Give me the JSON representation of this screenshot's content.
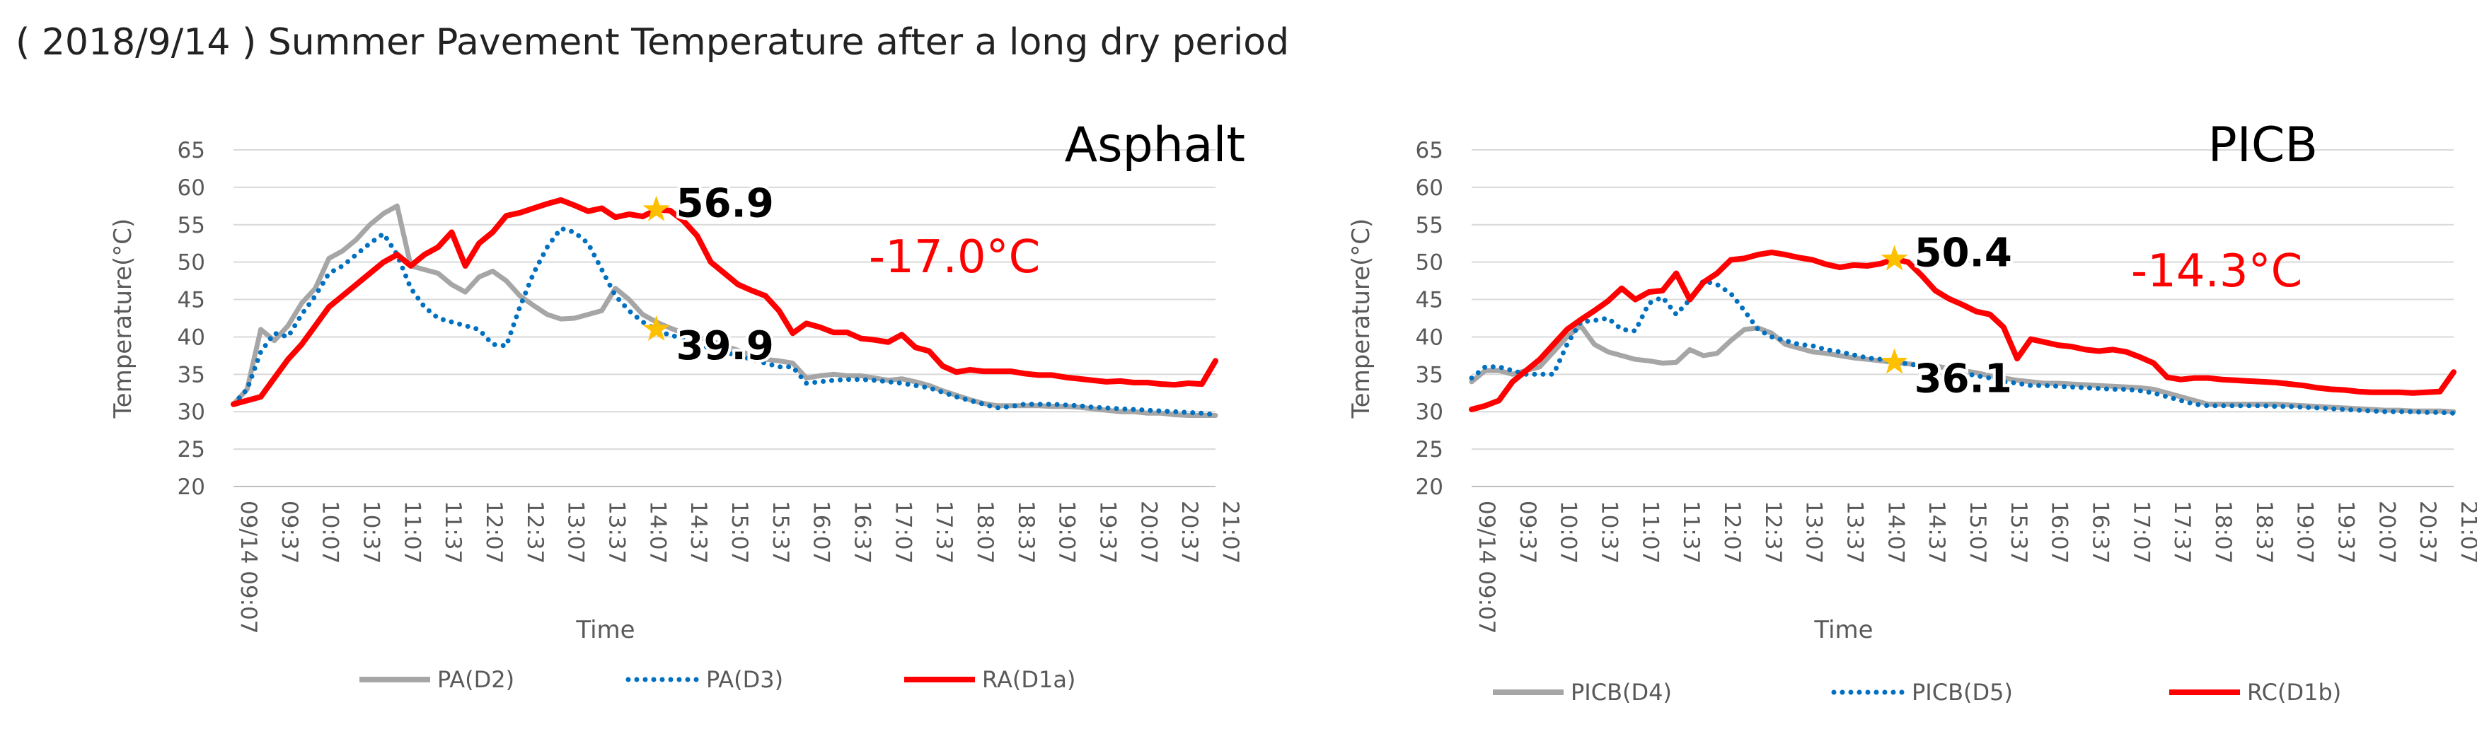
{
  "page_title": "( 2018/9/14 ) Summer Pavement Temperature after a long dry period",
  "chart_data": [
    {
      "type": "line",
      "title": "Asphalt",
      "xlabel": "Time",
      "ylabel": "Temperature(°C)",
      "ylim": [
        20,
        65
      ],
      "yticks": [
        "65",
        "60",
        "55",
        "50",
        "45",
        "40",
        "35",
        "30",
        "25",
        "20"
      ],
      "x_tick_labels": [
        "09/14 09:07",
        "09:37",
        "10:07",
        "10:37",
        "11:07",
        "11:37",
        "12:07",
        "12:37",
        "13:07",
        "13:37",
        "14:07",
        "14:37",
        "15:07",
        "15:37",
        "16:07",
        "16:37",
        "17:07",
        "17:37",
        "18:07",
        "18:37",
        "19:07",
        "19:37",
        "20:07",
        "20:37",
        "21:07"
      ],
      "x_points_per_tick": 3,
      "grid": true,
      "legend_position": "bottom",
      "series": [
        {
          "name": "PA(D2)",
          "color": "#a6a6a6",
          "style": "solid",
          "values": [
            31.0,
            33.0,
            41.0,
            39.5,
            41.5,
            44.5,
            46.5,
            50.5,
            51.5,
            53.0,
            55.0,
            56.5,
            57.5,
            49.5,
            49.0,
            48.5,
            47.0,
            46.0,
            48.0,
            48.8,
            47.5,
            45.5,
            44.2,
            43.0,
            42.4,
            42.5,
            43.0,
            43.5,
            46.5,
            45.0,
            43.0,
            42.0,
            41.2,
            40.5,
            40.0,
            39.5,
            38.8,
            38.2,
            37.5,
            37.0,
            36.8,
            36.5,
            34.5,
            34.8,
            35.0,
            34.8,
            34.8,
            34.5,
            34.2,
            34.4,
            34.0,
            33.5,
            32.8,
            32.2,
            31.6,
            31.1,
            30.8,
            30.8,
            30.8,
            30.8,
            30.7,
            30.7,
            30.6,
            30.4,
            30.2,
            30.0,
            30.0,
            29.8,
            29.8,
            29.6,
            29.5,
            29.5,
            29.5
          ]
        },
        {
          "name": "PA(D3)",
          "color": "#0070c0",
          "style": "dotted",
          "values": [
            31.0,
            33.0,
            38.0,
            40.5,
            40.0,
            43.0,
            45.5,
            48.5,
            49.5,
            51.0,
            52.5,
            53.8,
            51.0,
            46.5,
            44.0,
            42.5,
            42.0,
            41.5,
            41.0,
            39.0,
            38.8,
            44.0,
            48.5,
            52.0,
            54.5,
            54.0,
            52.5,
            49.0,
            45.5,
            43.5,
            42.0,
            41.0,
            40.2,
            39.9,
            39.0,
            38.5,
            38.0,
            37.5,
            37.0,
            36.5,
            36.0,
            36.0,
            33.8,
            34.0,
            34.2,
            34.3,
            34.3,
            34.2,
            34.0,
            33.8,
            33.5,
            33.2,
            32.6,
            32.0,
            31.5,
            31.0,
            30.5,
            30.7,
            31.0,
            31.0,
            31.0,
            30.9,
            30.8,
            30.6,
            30.5,
            30.4,
            30.3,
            30.2,
            30.1,
            30.0,
            29.9,
            29.8,
            29.6
          ]
        },
        {
          "name": "RA(D1a)",
          "color": "#ff0000",
          "style": "solid",
          "values": [
            31.0,
            31.5,
            32.0,
            34.5,
            37.0,
            39.0,
            41.5,
            44.0,
            45.5,
            47.0,
            48.5,
            50.0,
            51.0,
            49.5,
            51.0,
            52.0,
            54.0,
            49.5,
            52.5,
            54.0,
            56.2,
            56.6,
            57.2,
            57.8,
            58.3,
            57.6,
            56.8,
            57.2,
            56.0,
            56.4,
            56.1,
            57.0,
            56.9,
            55.5,
            53.5,
            50.0,
            48.5,
            47.0,
            46.2,
            45.5,
            43.5,
            40.5,
            41.8,
            41.3,
            40.6,
            40.6,
            39.8,
            39.6,
            39.3,
            40.3,
            38.6,
            38.1,
            36.1,
            35.3,
            35.6,
            35.4,
            35.4,
            35.4,
            35.1,
            34.9,
            34.9,
            34.6,
            34.4,
            34.2,
            34.0,
            34.1,
            33.9,
            33.9,
            33.7,
            33.6,
            33.8,
            33.7,
            36.8
          ]
        }
      ],
      "annotations": {
        "max_label": "56.9",
        "min_label": "39.9",
        "diff_label": "-17.0°C",
        "star_color": "#ffc000"
      }
    },
    {
      "type": "line",
      "title": "PICB",
      "xlabel": "Time",
      "ylabel": "Temperature(°C)",
      "ylim": [
        20,
        65
      ],
      "yticks": [
        "65",
        "60",
        "55",
        "50",
        "45",
        "40",
        "35",
        "30",
        "25",
        "20"
      ],
      "x_tick_labels": [
        "09/14 09:07",
        "09:37",
        "10:07",
        "10:37",
        "11:07",
        "11:37",
        "12:07",
        "12:37",
        "13:07",
        "13:37",
        "14:07",
        "14:37",
        "15:07",
        "15:37",
        "16:07",
        "16:37",
        "17:07",
        "17:37",
        "18:07",
        "18:37",
        "19:07",
        "19:37",
        "20:07",
        "20:37",
        "21:07"
      ],
      "x_points_per_tick": 3,
      "grid": true,
      "legend_position": "bottom",
      "series": [
        {
          "name": "PICB(D4)",
          "color": "#a6a6a6",
          "style": "solid",
          "values": [
            34.0,
            35.5,
            35.5,
            35.0,
            35.5,
            36.0,
            38.0,
            40.0,
            41.5,
            39.0,
            38.0,
            37.5,
            37.0,
            36.8,
            36.5,
            36.6,
            38.3,
            37.5,
            37.8,
            39.5,
            41.0,
            41.2,
            40.5,
            39.0,
            38.5,
            38.0,
            37.8,
            37.5,
            37.2,
            37.0,
            36.8,
            36.6,
            36.4,
            36.2,
            36.1,
            35.8,
            35.5,
            35.2,
            34.8,
            34.5,
            34.2,
            34.0,
            33.8,
            33.8,
            33.7,
            33.6,
            33.5,
            33.4,
            33.3,
            33.2,
            33.0,
            32.5,
            32.0,
            31.5,
            31.0,
            31.0,
            31.0,
            31.0,
            31.0,
            31.0,
            30.9,
            30.8,
            30.7,
            30.6,
            30.5,
            30.4,
            30.3,
            30.2,
            30.2,
            30.1,
            30.1,
            30.1,
            30.0
          ]
        },
        {
          "name": "PICB(D5)",
          "color": "#0070c0",
          "style": "dotted",
          "values": [
            34.5,
            36.0,
            36.0,
            35.5,
            35.0,
            35.0,
            35.0,
            39.0,
            42.0,
            42.2,
            42.5,
            41.0,
            40.8,
            44.5,
            45.3,
            43.0,
            45.0,
            47.5,
            47.0,
            45.8,
            43.5,
            41.0,
            40.0,
            39.5,
            39.0,
            38.8,
            38.3,
            38.0,
            37.6,
            37.2,
            37.0,
            36.6,
            36.4,
            36.1,
            35.8,
            35.5,
            35.2,
            34.8,
            34.5,
            34.0,
            33.8,
            33.5,
            33.5,
            33.4,
            33.3,
            33.2,
            33.1,
            33.0,
            33.0,
            32.8,
            32.5,
            32.0,
            31.5,
            31.0,
            30.8,
            30.8,
            30.8,
            30.8,
            30.8,
            30.7,
            30.7,
            30.6,
            30.5,
            30.4,
            30.3,
            30.2,
            30.1,
            30.0,
            30.0,
            30.0,
            29.9,
            29.9,
            29.8
          ]
        },
        {
          "name": "RC(D1b)",
          "color": "#ff0000",
          "style": "solid",
          "values": [
            30.3,
            30.8,
            31.5,
            34.0,
            35.5,
            37.0,
            39.0,
            41.0,
            42.3,
            43.5,
            44.8,
            46.5,
            45.0,
            46.0,
            46.2,
            48.5,
            45.0,
            47.3,
            48.5,
            50.3,
            50.5,
            51.0,
            51.3,
            51.0,
            50.6,
            50.3,
            49.7,
            49.3,
            49.6,
            49.5,
            49.8,
            50.4,
            50.0,
            48.2,
            46.2,
            45.1,
            44.3,
            43.4,
            43.0,
            41.3,
            37.1,
            39.7,
            39.3,
            38.9,
            38.7,
            38.3,
            38.1,
            38.3,
            38.0,
            37.3,
            36.5,
            34.6,
            34.3,
            34.5,
            34.5,
            34.3,
            34.2,
            34.1,
            34.0,
            33.9,
            33.7,
            33.5,
            33.2,
            33.0,
            32.9,
            32.7,
            32.6,
            32.6,
            32.6,
            32.5,
            32.6,
            32.7,
            35.3
          ]
        }
      ],
      "annotations": {
        "max_label": "50.4",
        "min_label": "36.1",
        "diff_label": "-14.3°C",
        "star_color": "#ffc000"
      }
    }
  ]
}
